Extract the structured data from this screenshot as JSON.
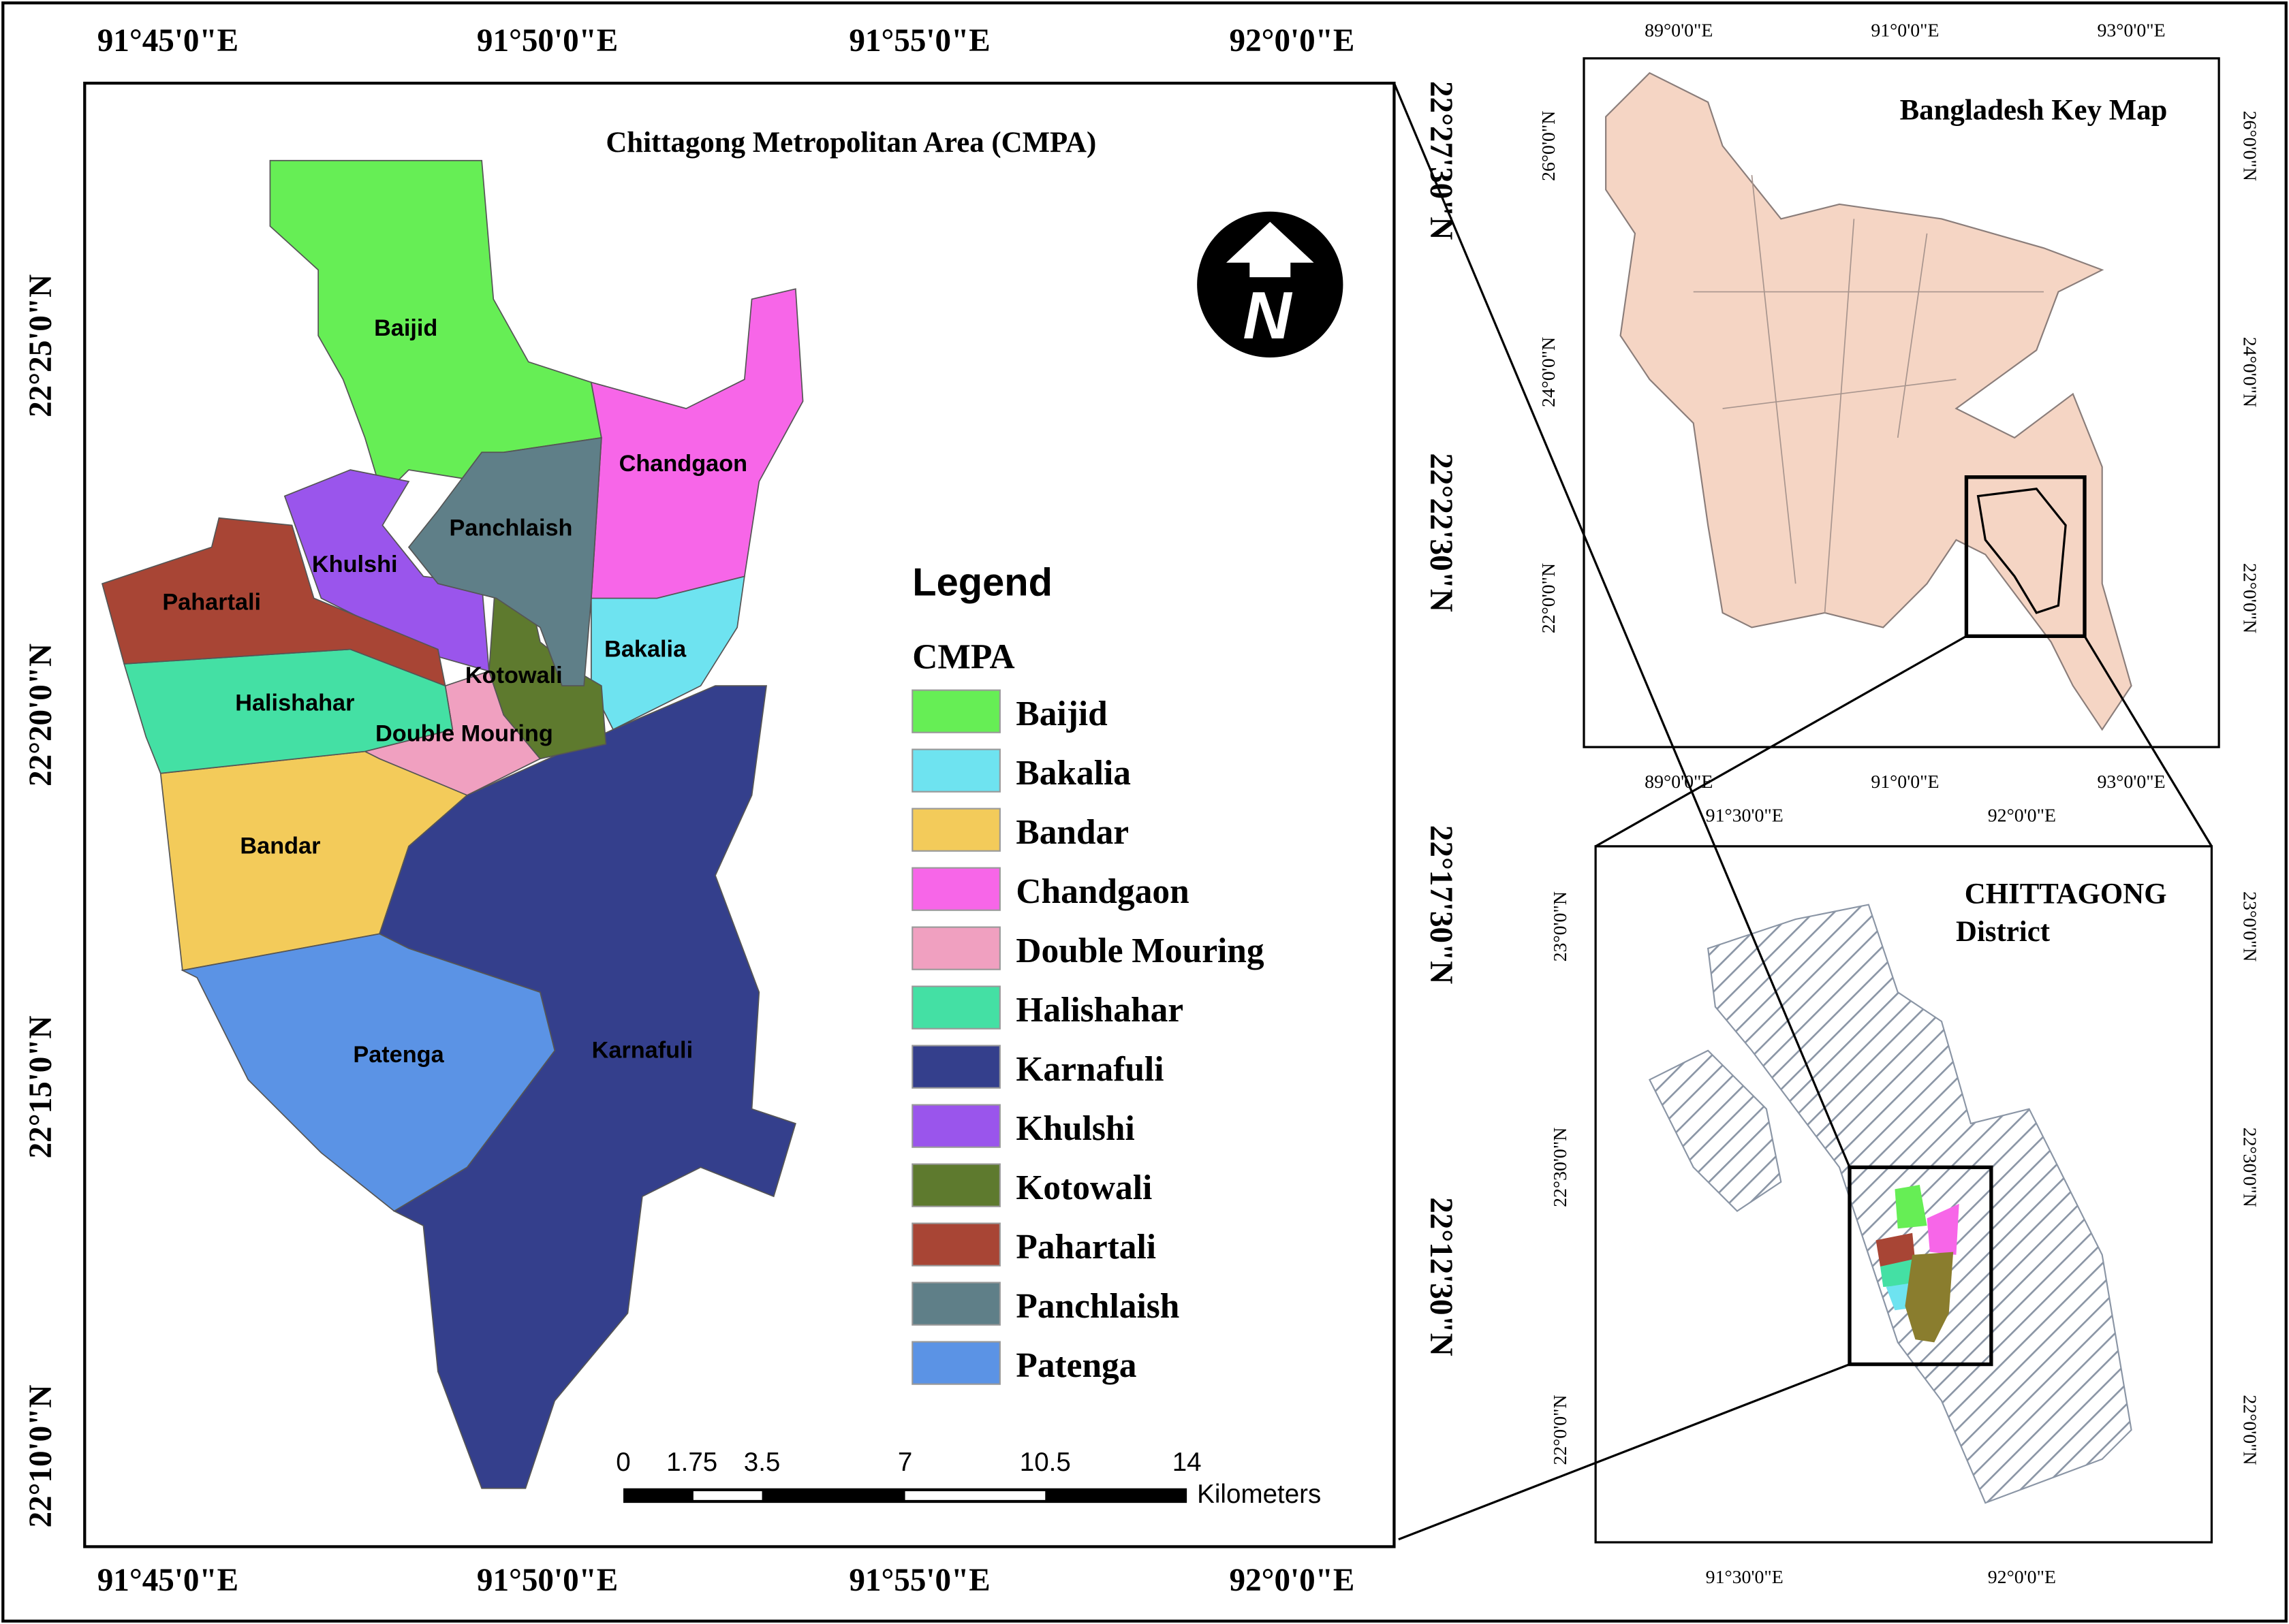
{
  "main_map": {
    "title": "Chittagong Metropolitan Area (CMPA)",
    "top_labels": [
      "91°45'0\"E",
      "91°50'0\"E",
      "91°55'0\"E",
      "92°0'0\"E"
    ],
    "bottom_labels": [
      "91°45'0\"E",
      "91°50'0\"E",
      "91°55'0\"E",
      "92°0'0\"E"
    ],
    "left_labels": [
      "22°25'0\"N",
      "22°20'0\"N",
      "22°15'0\"N",
      "22°10'0\"N"
    ],
    "right_labels": [
      "22°27'30\"N",
      "22°22'30\"N",
      "22°17'30\"N",
      "22°12'30\"N"
    ],
    "north_arrow": "N",
    "legend_title": "Legend",
    "legend_subtitle": "CMPA",
    "districts": [
      {
        "name": "Baijid",
        "color": "#66ee55"
      },
      {
        "name": "Bakalia",
        "color": "#6ee3f0"
      },
      {
        "name": "Bandar",
        "color": "#f3cb5a"
      },
      {
        "name": "Chandgaon",
        "color": "#f766e8"
      },
      {
        "name": "Double Mouring",
        "color": "#f0a0c0"
      },
      {
        "name": "Halishahar",
        "color": "#44e0a4"
      },
      {
        "name": "Karnafuli",
        "color": "#343f8c"
      },
      {
        "name": "Khulshi",
        "color": "#9a55ec"
      },
      {
        "name": "Kotowali",
        "color": "#5e7a2e"
      },
      {
        "name": "Pahartali",
        "color": "#a84535"
      },
      {
        "name": "Panchlaish",
        "color": "#5f7f88"
      },
      {
        "name": "Patenga",
        "color": "#5b93e5"
      }
    ],
    "scale_bar": {
      "labels": [
        "0",
        "1.75",
        "3.5",
        "7",
        "10.5",
        "14"
      ],
      "unit": "Kilometers"
    }
  },
  "key_map": {
    "title": "Bangladesh Key Map",
    "top_labels": [
      "89°0'0\"E",
      "91°0'0\"E",
      "93°0'0\"E"
    ],
    "bottom_labels": [
      "89°0'0\"E",
      "91°0'0\"E",
      "93°0'0\"E"
    ],
    "left_labels": [
      "26°0'0\"N",
      "24°0'0\"N",
      "22°0'0\"N"
    ],
    "right_labels": [
      "26°0'0\"N",
      "24°0'0\"N",
      "22°0'0\"N"
    ]
  },
  "district_map": {
    "title": "CHITTAGONG",
    "subtitle": "District",
    "top_labels": [
      "91°30'0\"E",
      "92°0'0\"E"
    ],
    "bottom_labels": [
      "91°30'0\"E",
      "92°0'0\"E"
    ],
    "left_labels": [
      "23°0'0\"N",
      "22°30'0\"N",
      "22°0'0\"N"
    ],
    "right_labels": [
      "23°0'0\"N",
      "22°30'0\"N",
      "22°0'0\"N"
    ]
  }
}
